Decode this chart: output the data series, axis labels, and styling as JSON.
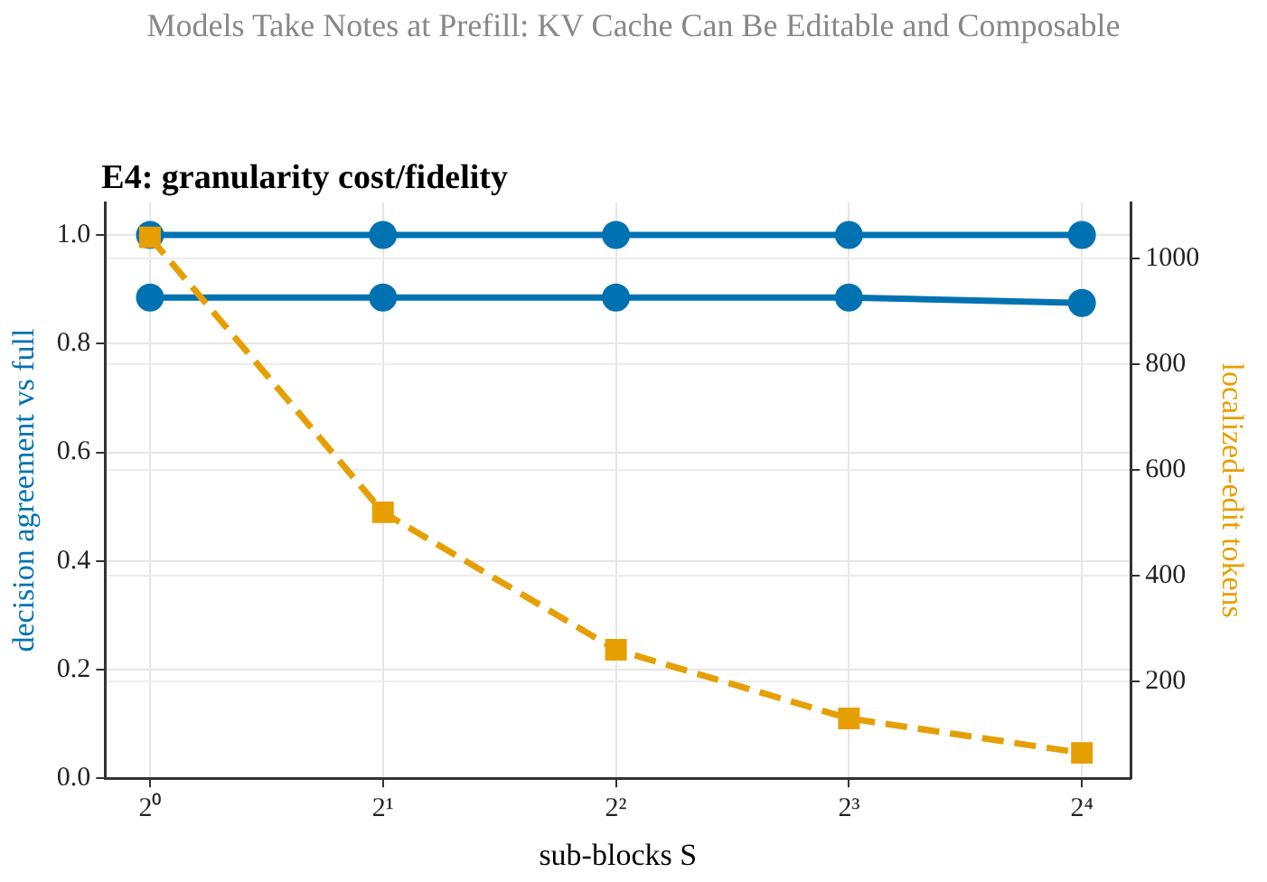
{
  "chart_data": {
    "type": "line",
    "title": "Models Take Notes at Prefill: KV Cache Can Be Editable and Composable",
    "subtitle": "E4: granularity cost/fidelity",
    "xlabel": "sub-blocks S",
    "ylabel": "decision agreement vs full",
    "y2label": "localized-edit tokens",
    "x": [
      1,
      2,
      4,
      8,
      16
    ],
    "series": [
      {
        "color": "#0072b2",
        "values": [
          1.0,
          1.0,
          1.0,
          1.0,
          1.0
        ],
        "marker": "circle",
        "line_style": "solid"
      },
      {
        "color": "#0072b2",
        "values": [
          0.885,
          0.885,
          0.885,
          0.885,
          0.875
        ],
        "marker": "circle",
        "line_style": "solid"
      },
      {
        "color": "#e69f00",
        "values": [
          1040,
          520,
          260,
          130,
          65
        ],
        "marker": "square",
        "line_style": "dashed",
        "axis": "y2"
      }
    ],
    "log": "x",
    "xlim": [
      0.875,
      18.5
    ],
    "xticks": [
      {
        "value": 1,
        "label": "2⁰"
      },
      {
        "value": 2,
        "label": "2¹"
      },
      {
        "value": 4,
        "label": "2²"
      },
      {
        "value": 8,
        "label": "2³"
      },
      {
        "value": 16,
        "label": "2⁴"
      }
    ],
    "ylim": [
      0,
      1.06
    ],
    "yticks": [
      {
        "value": 0,
        "label": "0.0"
      },
      0.2,
      0.4,
      0.6,
      0.8,
      {
        "value": 1,
        "label": "1.0"
      }
    ],
    "y2lim": [
      17,
      1106
    ],
    "y2ticks": [
      200,
      400,
      600,
      800,
      1000
    ],
    "grid": true,
    "legend": false
  }
}
